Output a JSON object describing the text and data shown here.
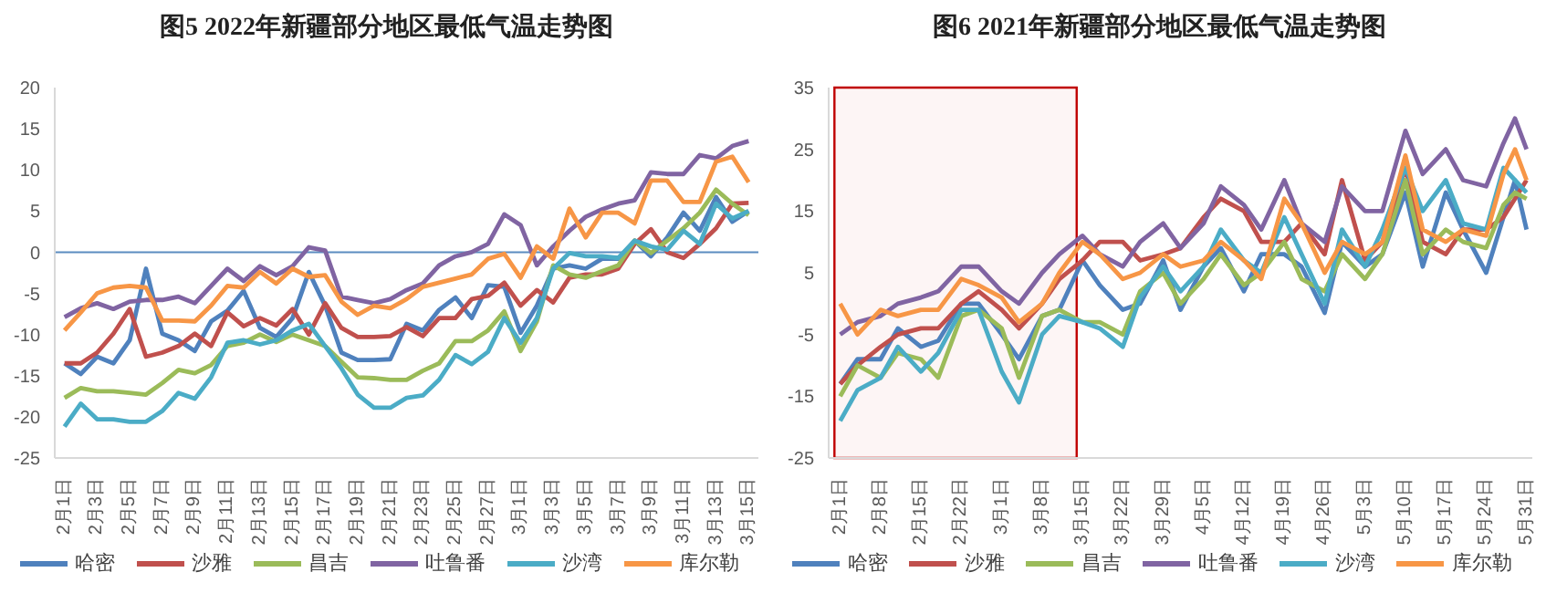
{
  "chart_data": [
    {
      "type": "line",
      "title": "图5  2022年新疆部分地区最低气温走势图",
      "categories": [
        "2月1日",
        null,
        "2月3日",
        null,
        "2月5日",
        null,
        "2月7日",
        null,
        "2月9日",
        null,
        "2月11日",
        null,
        "2月13日",
        null,
        "2月15日",
        null,
        "2月17日",
        null,
        "2月19日",
        null,
        "2月21日",
        null,
        "2月23日",
        null,
        "2月25日",
        null,
        "2月27日",
        null,
        "3月1日",
        null,
        "3月3日",
        null,
        "3月5日",
        null,
        "3月7日",
        null,
        "3月9日",
        null,
        "3月11日",
        null,
        "3月13日",
        null,
        "3月15日"
      ],
      "series": [
        {
          "name": "哈密",
          "color": "#4f81bd",
          "values": [
            -13.5,
            -14.8,
            -12.7,
            -13.5,
            -10.7,
            -2,
            -9.9,
            -10.7,
            -12,
            -8.4,
            -7.1,
            -4.7,
            -9.2,
            -10.3,
            -8,
            -2.4,
            -6.5,
            -12.2,
            -13.1,
            -13.1,
            -13,
            -8.7,
            -9.5,
            -7,
            -5.5,
            -8,
            -4,
            -4.2,
            -9.8,
            -6.5,
            -2,
            -1.6,
            -2,
            -0.8,
            -0.8,
            1.4,
            -0.5,
            1.8,
            4.8,
            2.6,
            6.7,
            3.7,
            5
          ]
        },
        {
          "name": "沙雅",
          "color": "#c0504d",
          "values": [
            -13.5,
            -13.5,
            -12.2,
            -9.9,
            -6.9,
            -12.7,
            -12.2,
            -11.4,
            -9.9,
            -11.4,
            -7.3,
            -9,
            -8,
            -8.9,
            -6.9,
            -10,
            -6.2,
            -9.2,
            -10.3,
            -10.3,
            -10.2,
            -9.1,
            -10.2,
            -8,
            -8,
            -5.7,
            -5.3,
            -3.7,
            -6.5,
            -4.6,
            -6.1,
            -3.1,
            -2.7,
            -2.7,
            -2,
            1,
            2.8,
            0,
            -0.7,
            1,
            2.9,
            5.9,
            6
          ]
        },
        {
          "name": "昌吉",
          "color": "#9bbb59",
          "values": [
            -17.7,
            -16.5,
            -16.9,
            -16.9,
            -17.1,
            -17.3,
            -15.9,
            -14.3,
            -14.7,
            -13.7,
            -11.4,
            -11,
            -10,
            -10.9,
            -10,
            -10.7,
            -11.4,
            -13.3,
            -15.2,
            -15.3,
            -15.5,
            -15.5,
            -14.4,
            -13.5,
            -10.8,
            -10.8,
            -9.5,
            -7.2,
            -12,
            -8.4,
            -1.6,
            -2.7,
            -3.1,
            -2.3,
            -1.6,
            1.4,
            -0.1,
            1.4,
            2.9,
            4.8,
            7.6,
            5.9,
            4.5
          ]
        },
        {
          "name": "吐鲁番",
          "color": "#8064a2",
          "values": [
            -7.9,
            -6.8,
            -6.2,
            -6.9,
            -6,
            -5.8,
            -5.8,
            -5.4,
            -6.2,
            -4.1,
            -2,
            -3.5,
            -1.7,
            -2.8,
            -1.7,
            0.6,
            0.2,
            -5.4,
            -5.8,
            -6.2,
            -5.7,
            -4.6,
            -3.8,
            -1.6,
            -0.5,
            0,
            1,
            4.6,
            3.3,
            -1.6,
            0.7,
            2.6,
            4.3,
            5.2,
            5.9,
            6.3,
            9.7,
            9.5,
            9.5,
            11.8,
            11.4,
            12.9,
            13.5
          ]
        },
        {
          "name": "沙湾",
          "color": "#4bacc6",
          "values": [
            -21.2,
            -18.4,
            -20.3,
            -20.3,
            -20.6,
            -20.6,
            -19.3,
            -17.1,
            -17.8,
            -15.2,
            -11,
            -10.7,
            -11.2,
            -10.7,
            -9.5,
            -8.7,
            -11.4,
            -14.1,
            -17.3,
            -18.9,
            -18.9,
            -17.7,
            -17.4,
            -15.5,
            -12.5,
            -13.6,
            -12.1,
            -8,
            -11,
            -8,
            -2,
            -0.1,
            -0.5,
            -0.5,
            -0.7,
            1.4,
            0.7,
            0.3,
            2.6,
            1,
            5.9,
            4.1,
            5
          ]
        },
        {
          "name": "库尔勒",
          "color": "#f79646",
          "values": [
            -9.5,
            -7.3,
            -5,
            -4.3,
            -4.1,
            -4.3,
            -8.3,
            -8.3,
            -8.4,
            -6.5,
            -4.1,
            -4.3,
            -2.4,
            -3.8,
            -2,
            -3,
            -2.8,
            -6,
            -7.6,
            -6.5,
            -6.8,
            -5.7,
            -4.2,
            -3.7,
            -3.2,
            -2.7,
            -0.8,
            -0.2,
            -3.1,
            0.7,
            -0.8,
            5.3,
            1.8,
            4.8,
            4.8,
            3.5,
            8.7,
            8.7,
            6.1,
            6.1,
            11,
            11.6,
            8.5
          ]
        }
      ],
      "ylim": [
        -25,
        20
      ],
      "yticks": [
        -25,
        -20,
        -15,
        -10,
        -5,
        0,
        5,
        10,
        15,
        20
      ],
      "ref_lines": [
        {
          "axis": "y",
          "value": 0,
          "color": "#5b8cc0"
        }
      ],
      "legend": "bottom",
      "grid": false
    },
    {
      "type": "line",
      "title": "图6  2021年新疆部分地区最低气温走势图",
      "x": [
        "2021-02-01",
        "2021-02-04",
        "2021-02-08",
        "2021-02-11",
        "2021-02-15",
        "2021-02-18",
        "2021-02-22",
        "2021-02-25",
        "2021-03-01",
        "2021-03-04",
        "2021-03-08",
        "2021-03-11",
        "2021-03-15",
        "2021-03-18",
        "2021-03-22",
        "2021-03-25",
        "2021-03-29",
        "2021-04-01",
        "2021-04-05",
        "2021-04-08",
        "2021-04-12",
        "2021-04-15",
        "2021-04-19",
        "2021-04-22",
        "2021-04-26",
        "2021-04-29",
        "2021-05-03",
        "2021-05-06",
        "2021-05-10",
        "2021-05-13",
        "2021-05-17",
        "2021-05-20",
        "2021-05-24",
        "2021-05-27",
        "2021-05-29",
        "2021-05-31"
      ],
      "series": [
        {
          "name": "哈密",
          "color": "#4f81bd",
          "values": [
            -13,
            -9,
            -9,
            -4,
            -7,
            -6,
            0,
            0,
            -5,
            -9,
            -2,
            -1,
            7,
            3,
            -1,
            0,
            7,
            -1,
            6,
            9,
            2,
            8,
            8,
            6,
            -1.5,
            10,
            6,
            8,
            18,
            6,
            18,
            12,
            5,
            14,
            20,
            12
          ]
        },
        {
          "name": "沙雅",
          "color": "#c0504d",
          "values": [
            -13,
            -10,
            -7,
            -5,
            -4,
            -4,
            0,
            2,
            -1,
            -4,
            0,
            4,
            7,
            10,
            10,
            7,
            8,
            9,
            14,
            17,
            15,
            10,
            10,
            13,
            8,
            20,
            7,
            10,
            22,
            10,
            8,
            12,
            12,
            14,
            17,
            20
          ]
        },
        {
          "name": "昌吉",
          "color": "#9bbb59",
          "values": [
            -15,
            -10,
            -12,
            -8,
            -9,
            -12,
            -2,
            -1,
            -4,
            -12,
            -2,
            -1,
            -3,
            -3,
            -5,
            2,
            5,
            0,
            4,
            8,
            3,
            5,
            10,
            4,
            2,
            8,
            4,
            8,
            20,
            8,
            12,
            10,
            9,
            16,
            18,
            17
          ]
        },
        {
          "name": "吐鲁番",
          "color": "#8064a2",
          "values": [
            -5,
            -3,
            -2,
            0,
            1,
            2,
            6,
            6,
            2,
            0,
            5,
            8,
            11,
            8,
            6,
            10,
            13,
            9,
            13,
            19,
            16,
            12,
            20,
            13,
            10,
            19,
            15,
            15,
            28,
            21,
            25,
            20,
            19,
            26,
            30,
            25
          ]
        },
        {
          "name": "沙湾",
          "color": "#4bacc6",
          "values": [
            -19,
            -14,
            -12,
            -7,
            -11,
            -8,
            -1,
            -1,
            -11,
            -16,
            -5,
            -2,
            -3,
            -4,
            -7,
            1,
            6,
            2,
            6,
            12,
            7,
            5,
            14,
            8,
            0,
            12,
            6,
            12,
            22,
            15,
            20,
            13,
            12,
            22,
            20,
            18
          ]
        },
        {
          "name": "库尔勒",
          "color": "#f79646",
          "values": [
            0,
            -5,
            -1,
            -2,
            -1,
            -1,
            4,
            3,
            1,
            -3,
            0,
            5,
            10,
            8,
            4,
            5,
            8,
            6,
            7,
            10,
            7,
            4,
            17,
            13,
            5,
            10,
            8,
            10,
            24,
            12,
            10,
            12,
            11,
            21,
            25,
            20
          ]
        }
      ],
      "xlim": [
        "2021-01-30",
        "2021-06-01"
      ],
      "xticks": [
        {
          "value": "2021-02-01",
          "label": "2月1日"
        },
        {
          "value": "2021-02-08",
          "label": "2月8日"
        },
        {
          "value": "2021-02-15",
          "label": "2月15日"
        },
        {
          "value": "2021-02-22",
          "label": "2月22日"
        },
        {
          "value": "2021-03-01",
          "label": "3月1日"
        },
        {
          "value": "2021-03-08",
          "label": "3月8日"
        },
        {
          "value": "2021-03-15",
          "label": "3月15日"
        },
        {
          "value": "2021-03-22",
          "label": "3月22日"
        },
        {
          "value": "2021-03-29",
          "label": "3月29日"
        },
        {
          "value": "2021-04-05",
          "label": "4月5日"
        },
        {
          "value": "2021-04-12",
          "label": "4月12日"
        },
        {
          "value": "2021-04-19",
          "label": "4月19日"
        },
        {
          "value": "2021-04-26",
          "label": "4月26日"
        },
        {
          "value": "2021-05-03",
          "label": "5月3日"
        },
        {
          "value": "2021-05-10",
          "label": "5月10日"
        },
        {
          "value": "2021-05-17",
          "label": "5月17日"
        },
        {
          "value": "2021-05-24",
          "label": "5月24日"
        },
        {
          "value": "2021-05-31",
          "label": "5月31日"
        }
      ],
      "ylim": [
        -25,
        35
      ],
      "yticks": [
        -25,
        -15,
        -5,
        5,
        15,
        25,
        35
      ],
      "bands": [
        {
          "axis": "x",
          "from": "2021-01-31",
          "to": "2021-03-14",
          "color": "#c00000"
        }
      ],
      "legend": "bottom",
      "grid": false
    }
  ]
}
